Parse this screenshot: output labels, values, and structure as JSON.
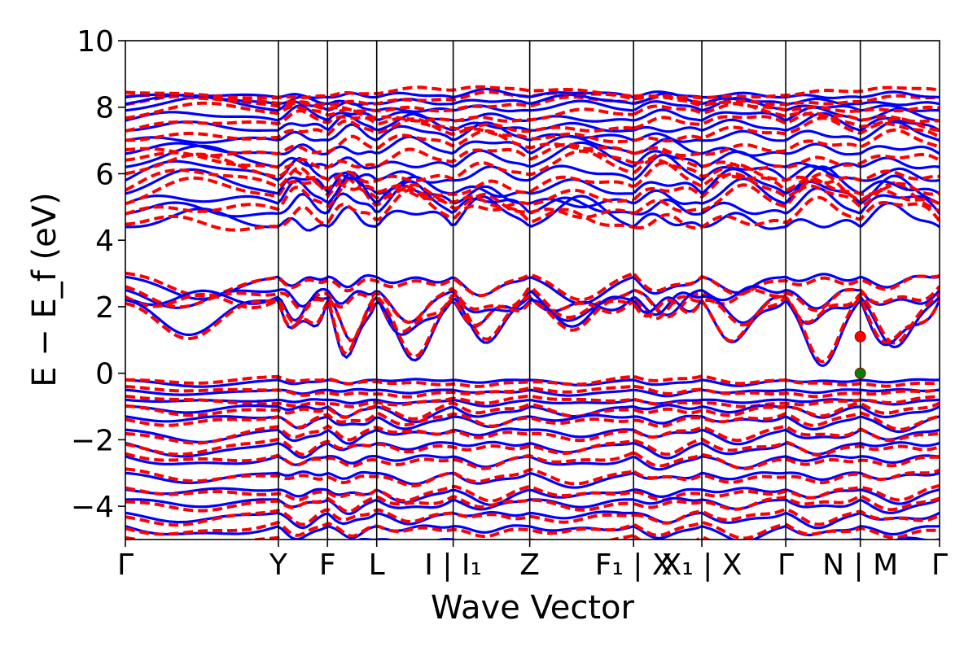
{
  "chart_data": {
    "type": "line",
    "title": "",
    "xlabel": "Wave Vector",
    "ylabel": "E − E_f (eV)",
    "ylim": [
      -5,
      10
    ],
    "y_ticks": [
      10,
      8,
      6,
      4,
      2,
      0,
      -2,
      -4
    ],
    "y_tick_labels": [
      "10",
      "8",
      "6",
      "4",
      "2",
      "0",
      "−2",
      "−4"
    ],
    "k_path": [
      {
        "label": "Γ",
        "k": 0.0
      },
      {
        "label": "Y",
        "k": 0.2435
      },
      {
        "label": "F",
        "k": 0.3217
      },
      {
        "label": "L",
        "k": 0.4
      },
      {
        "label": "I | I₁",
        "k": 0.5217
      },
      {
        "label": "Z",
        "k": 0.6435
      },
      {
        "label": "F₁ | X",
        "k": 0.8087
      },
      {
        "label": "X₁ | X",
        "k": 0.9174
      },
      {
        "label": "Γ",
        "k": 1.0509
      },
      {
        "label": "N | M",
        "k": 1.1696
      },
      {
        "label": "Γ",
        "k": 1.2957
      }
    ],
    "path_break_k": 0.8087,
    "grid": false,
    "legend": "none",
    "series": [
      {
        "style": "solid",
        "color": "#0000ff"
      },
      {
        "style": "dashed",
        "color": "#ff0000"
      }
    ],
    "points": [
      {
        "k": 1.1696,
        "E": 1.1,
        "color": "#ff0000"
      },
      {
        "k": 1.1696,
        "E": 0.0,
        "color": "#008000"
      }
    ]
  }
}
